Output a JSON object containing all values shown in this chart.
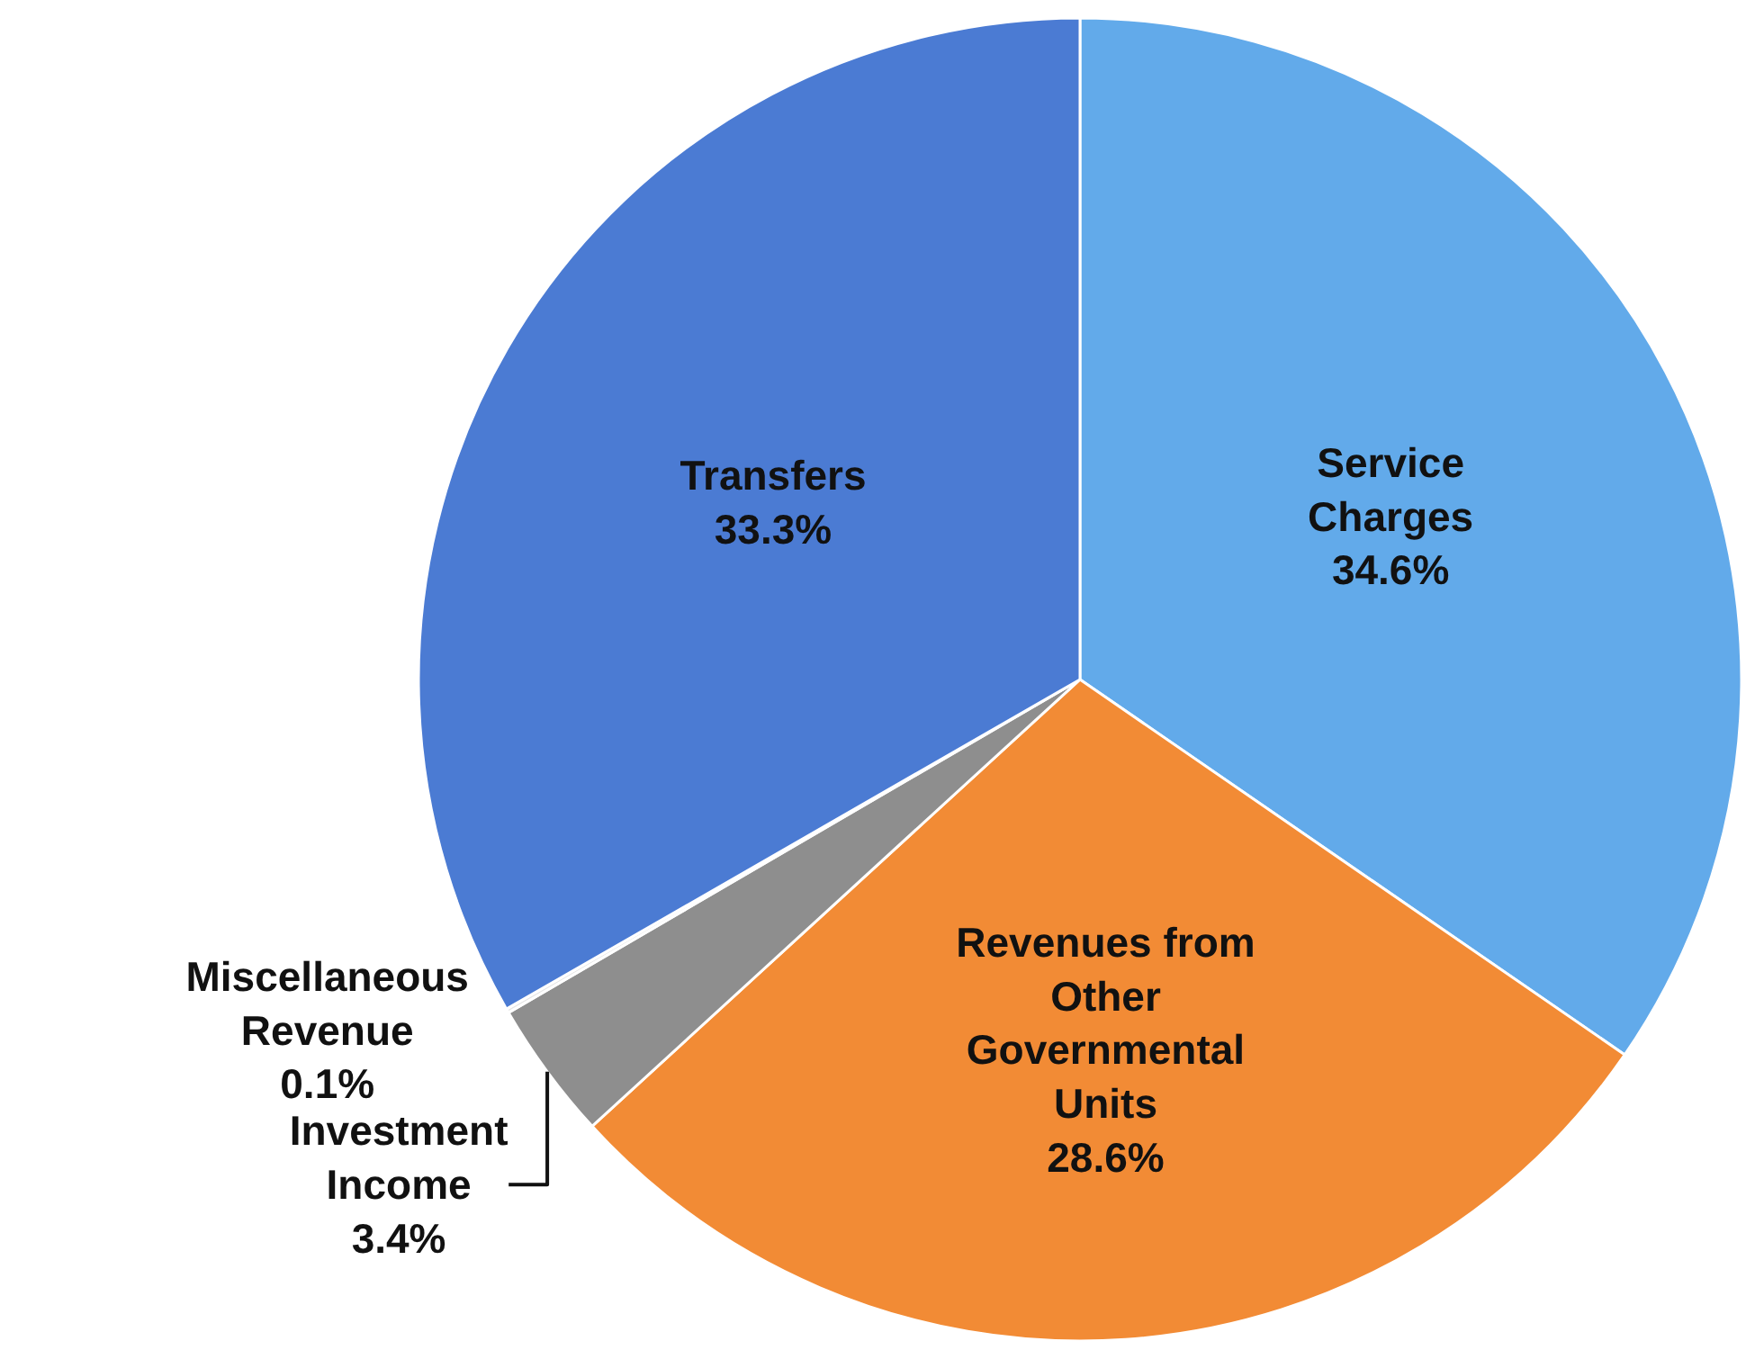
{
  "chart_data": {
    "type": "pie",
    "categories": [
      "Service Charges",
      "Revenues from Other Governmental Units",
      "Investment Income",
      "Miscellaneous Revenue",
      "Transfers"
    ],
    "values": [
      34.6,
      28.6,
      3.4,
      0.1,
      33.3
    ],
    "colors": [
      "#62aaea",
      "#f28b35",
      "#8e8e8e",
      "#e6e6e6",
      "#4b7bd3"
    ],
    "value_labels": [
      "34.6%",
      "28.6%",
      "3.4%",
      "0.1%",
      "33.3%"
    ],
    "legend": false
  }
}
